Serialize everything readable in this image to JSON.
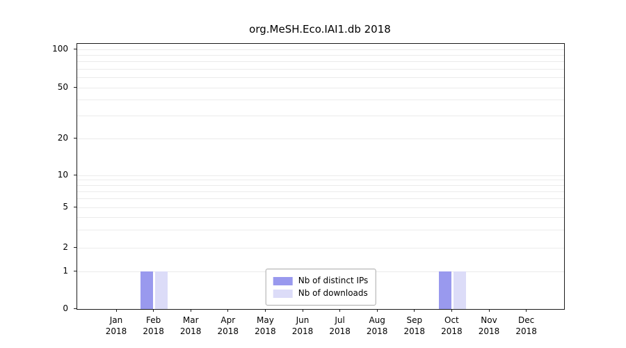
{
  "chart_data": {
    "type": "bar",
    "title": "org.MeSH.Eco.IAI1.db 2018",
    "categories": [
      "Jan\n2018",
      "Feb\n2018",
      "Mar\n2018",
      "Apr\n2018",
      "May\n2018",
      "Jun\n2018",
      "Jul\n2018",
      "Aug\n2018",
      "Sep\n2018",
      "Oct\n2018",
      "Nov\n2018",
      "Dec\n2018"
    ],
    "series": [
      {
        "name": "Nb of distinct IPs",
        "color": "#9999ee",
        "values": [
          0,
          1,
          0,
          0,
          0,
          0,
          0,
          0,
          0,
          1,
          0,
          0
        ]
      },
      {
        "name": "Nb of downloads",
        "color": "#dcdcf8",
        "values": [
          0,
          1,
          0,
          0,
          0,
          0,
          0,
          0,
          0,
          1,
          0,
          0
        ]
      }
    ],
    "yticks": [
      0,
      1,
      2,
      5,
      10,
      20,
      50,
      100
    ],
    "ylim": [
      0,
      110
    ],
    "yscale": "symlog",
    "grid": true,
    "legend_position": "bottom-center-inside",
    "colors": {
      "grid": "#ebebeb",
      "axis": "#1a1a1a",
      "text": "#000000",
      "background": "#ffffff"
    }
  }
}
